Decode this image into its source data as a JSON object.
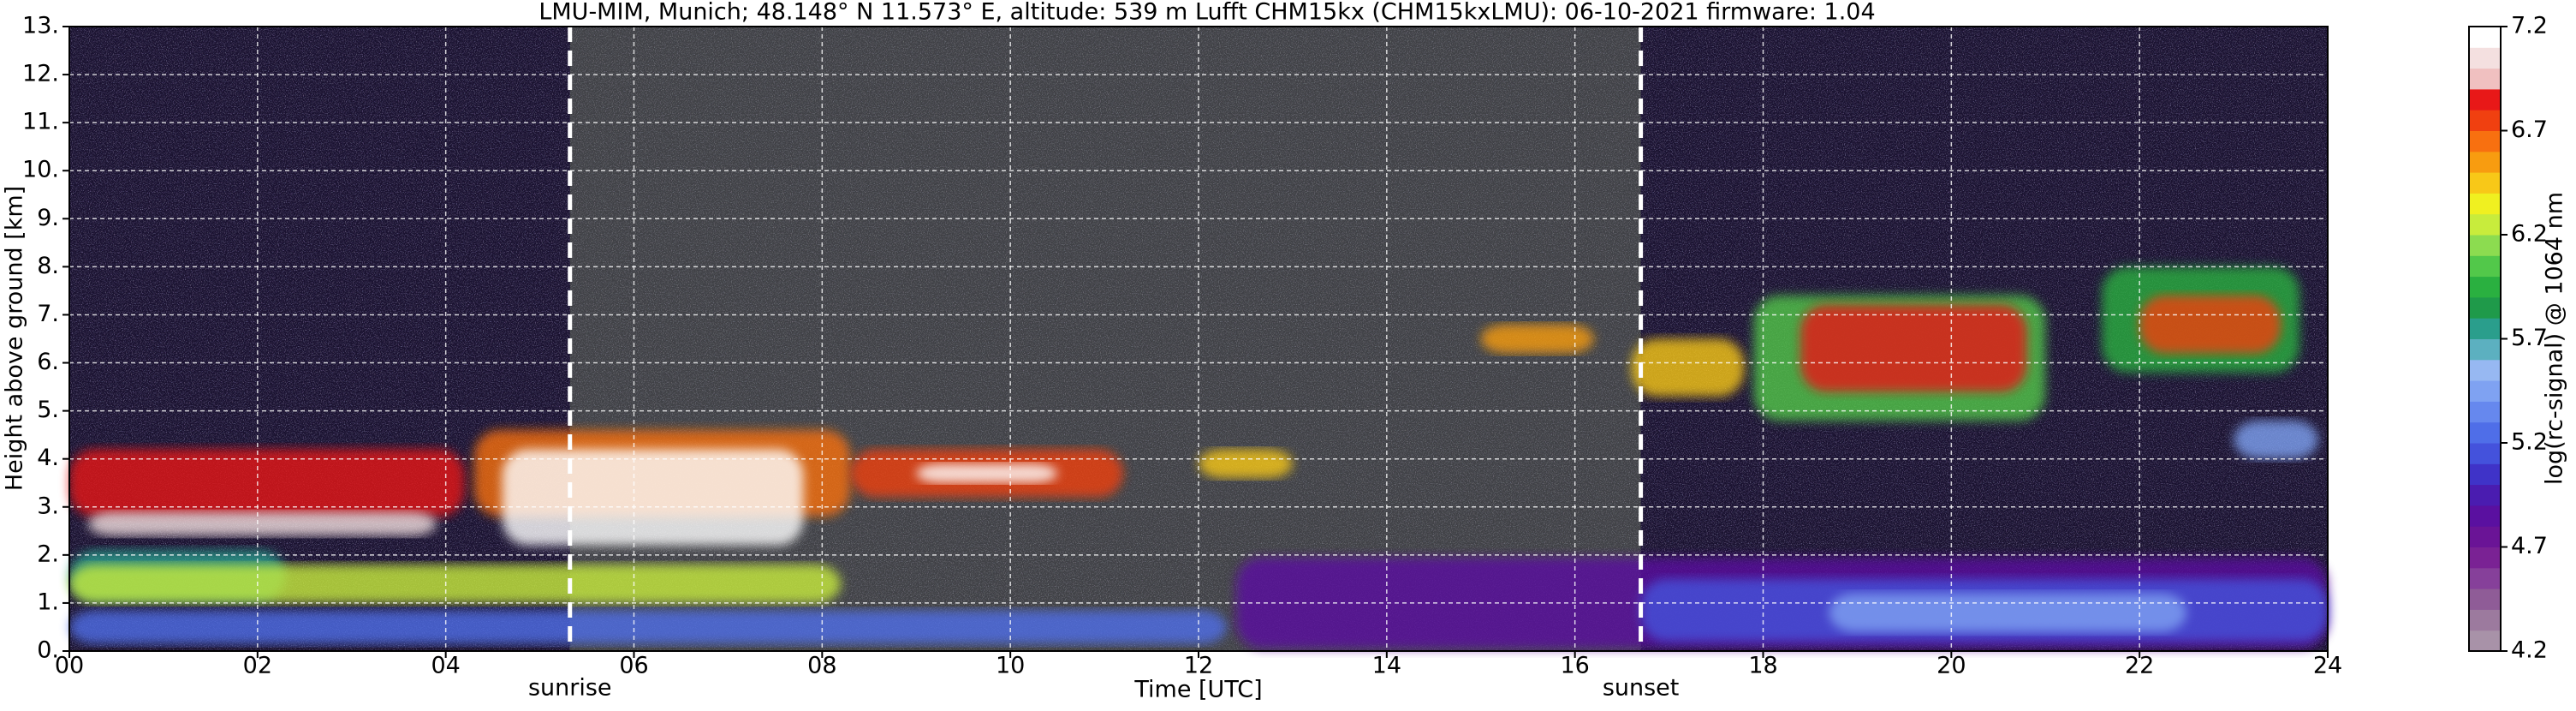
{
  "chart_data": {
    "type": "heatmap",
    "title": "LMU-MIM, Munich; 48.148° N 11.573° E, altitude: 539 m    Lufft CHM15kx (CHM15kxLMU): 06-10-2021    firmware: 1.04",
    "x_label": "Time [UTC]",
    "y_label": "Height above ground [km]",
    "xlim": [
      0,
      24
    ],
    "xticks": [
      {
        "value": 0,
        "label": "00"
      },
      {
        "value": 2,
        "label": "02"
      },
      {
        "value": 4,
        "label": "04"
      },
      {
        "value": 6,
        "label": "06"
      },
      {
        "value": 8,
        "label": "08"
      },
      {
        "value": 10,
        "label": "10"
      },
      {
        "value": 12,
        "label": "12"
      },
      {
        "value": 14,
        "label": "14"
      },
      {
        "value": 16,
        "label": "16"
      },
      {
        "value": 18,
        "label": "18"
      },
      {
        "value": 20,
        "label": "20"
      },
      {
        "value": 22,
        "label": "22"
      },
      {
        "value": 24,
        "label": "24"
      }
    ],
    "ylim": [
      0,
      13
    ],
    "yticks": [
      {
        "value": 0,
        "label": "0."
      },
      {
        "value": 1,
        "label": "1."
      },
      {
        "value": 2,
        "label": "2."
      },
      {
        "value": 3,
        "label": "3."
      },
      {
        "value": 4,
        "label": "4."
      },
      {
        "value": 5,
        "label": "5."
      },
      {
        "value": 6,
        "label": "6."
      },
      {
        "value": 7,
        "label": "7."
      },
      {
        "value": 8,
        "label": "8."
      },
      {
        "value": 9,
        "label": "9."
      },
      {
        "value": 10,
        "label": "10."
      },
      {
        "value": 11,
        "label": "11."
      },
      {
        "value": 12,
        "label": "12."
      },
      {
        "value": 13,
        "label": "13."
      }
    ],
    "grid": true,
    "annotations": [
      {
        "text": "sunrise",
        "x": 5.32
      },
      {
        "text": "sunset",
        "x": 16.7
      }
    ],
    "colorbar": {
      "label": "log(rc-signal) @ 1064 nm",
      "lim": [
        4.2,
        7.2
      ],
      "ticks": [
        4.2,
        4.7,
        5.2,
        5.7,
        6.2,
        6.7,
        7.2
      ],
      "colors": [
        "#a892a8",
        "#9c7a9e",
        "#8f5c97",
        "#86409a",
        "#7a2294",
        "#6a1496",
        "#5a10a0",
        "#4a1cb0",
        "#3f33c8",
        "#4452dc",
        "#4f6ee8",
        "#6688ee",
        "#7fa2f2",
        "#97b8f2",
        "#5cb0c0",
        "#2a9e8c",
        "#1f9a4a",
        "#2ab040",
        "#52c84a",
        "#8cdc50",
        "#c8ec3c",
        "#f0f020",
        "#f8c818",
        "#f89c10",
        "#f87010",
        "#f04010",
        "#e81818",
        "#f0c0c0",
        "#f4e0e0",
        "#ffffff"
      ]
    }
  }
}
